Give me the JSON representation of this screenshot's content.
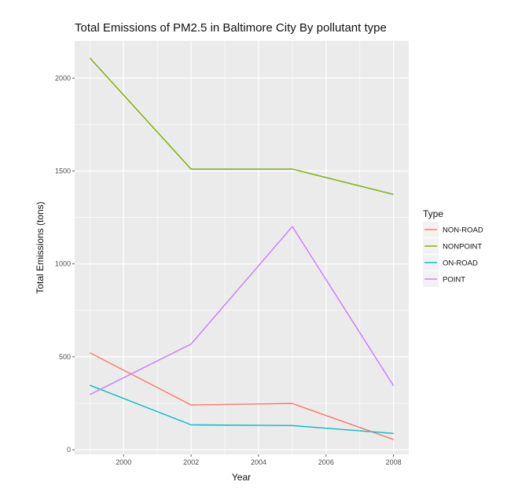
{
  "chart_data": {
    "type": "line",
    "title": "Total Emissions of PM2.5 in Baltimore City By pollutant type",
    "xlabel": "Year",
    "ylabel": "Total Emissions (tons)",
    "x": [
      1999,
      2002,
      2005,
      2008
    ],
    "xticks": [
      2000,
      2002,
      2004,
      2006,
      2008
    ],
    "xlim": [
      1998.55,
      2008.45
    ],
    "yticks": [
      0,
      500,
      1000,
      1500,
      2000
    ],
    "ylim": [
      -25,
      2200
    ],
    "grid": true,
    "legend": {
      "title": "Type",
      "position": "right"
    },
    "series": [
      {
        "name": "NON-ROAD",
        "color": "#F8766D",
        "values": [
          522,
          241,
          249,
          55
        ]
      },
      {
        "name": "NONPOINT",
        "color": "#7CAE00",
        "values": [
          2108,
          1510,
          1510,
          1374
        ]
      },
      {
        "name": "ON-ROAD",
        "color": "#00BFC4",
        "values": [
          347,
          134,
          130,
          88
        ]
      },
      {
        "name": "POINT",
        "color": "#C77CFF",
        "values": [
          297,
          569,
          1201,
          344
        ]
      }
    ]
  }
}
